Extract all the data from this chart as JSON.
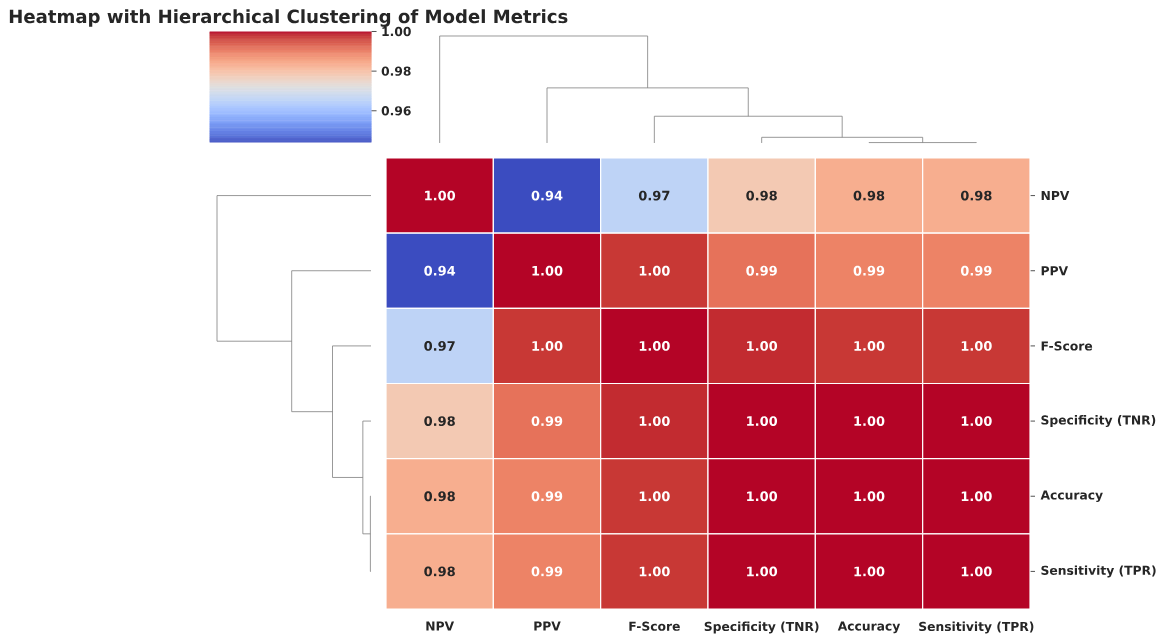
{
  "chart_data": {
    "type": "heatmap",
    "title": "Heatmap with Hierarchical Clustering of Model Metrics",
    "categories": [
      "NPV",
      "PPV",
      "F-Score",
      "Specificity (TNR)",
      "Accuracy",
      "Sensitivity (TPR)"
    ],
    "y_categories": [
      "NPV",
      "PPV",
      "F-Score",
      "Specificity (TNR)",
      "Accuracy",
      "Sensitivity (TPR)"
    ],
    "cells": [
      [
        1.0,
        0.944,
        0.966,
        0.978,
        0.983,
        0.983
      ],
      [
        0.944,
        1.0,
        0.997,
        0.991,
        0.989,
        0.989
      ],
      [
        0.966,
        0.997,
        1.0,
        0.998,
        0.997,
        0.997
      ],
      [
        0.978,
        0.991,
        0.998,
        1.0,
        1.0,
        1.0
      ],
      [
        0.983,
        0.989,
        0.997,
        1.0,
        1.0,
        1.0
      ],
      [
        0.983,
        0.989,
        0.997,
        1.0,
        1.0,
        1.0
      ]
    ],
    "cell_labels": [
      [
        "1.00",
        "0.94",
        "0.97",
        "0.98",
        "0.98",
        "0.98"
      ],
      [
        "0.94",
        "1.00",
        "1.00",
        "0.99",
        "0.99",
        "0.99"
      ],
      [
        "0.97",
        "1.00",
        "1.00",
        "1.00",
        "1.00",
        "1.00"
      ],
      [
        "0.98",
        "0.99",
        "1.00",
        "1.00",
        "1.00",
        "1.00"
      ],
      [
        "0.98",
        "0.99",
        "1.00",
        "1.00",
        "1.00",
        "1.00"
      ],
      [
        "0.98",
        "0.99",
        "1.00",
        "1.00",
        "1.00",
        "1.00"
      ]
    ],
    "clim": [
      0.944,
      1.0
    ],
    "cticks": [
      0.96,
      0.98,
      {
        "value": 1.0,
        "label": "1.00"
      }
    ]
  }
}
